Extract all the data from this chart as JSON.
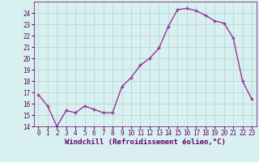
{
  "x": [
    0,
    1,
    2,
    3,
    4,
    5,
    6,
    7,
    8,
    9,
    10,
    11,
    12,
    13,
    14,
    15,
    16,
    17,
    18,
    19,
    20,
    21,
    22,
    23
  ],
  "y": [
    16.8,
    15.8,
    14.0,
    15.4,
    15.2,
    15.8,
    15.5,
    15.2,
    15.2,
    17.5,
    18.3,
    19.4,
    20.0,
    20.9,
    22.8,
    24.3,
    24.4,
    24.2,
    23.8,
    23.3,
    23.1,
    21.8,
    18.0,
    16.4
  ],
  "line_color": "#993399",
  "marker": "P",
  "marker_size": 2.5,
  "bg_color": "#d8f0f0",
  "grid_color": "#b8d8d8",
  "xlabel": "Windchill (Refroidissement éolien,°C)",
  "xlabel_color": "#660066",
  "tick_color": "#660066",
  "ylim": [
    14,
    25
  ],
  "xlim": [
    -0.5,
    23.5
  ],
  "yticks": [
    14,
    15,
    16,
    17,
    18,
    19,
    20,
    21,
    22,
    23,
    24
  ],
  "xticks": [
    0,
    1,
    2,
    3,
    4,
    5,
    6,
    7,
    8,
    9,
    10,
    11,
    12,
    13,
    14,
    15,
    16,
    17,
    18,
    19,
    20,
    21,
    22,
    23
  ],
  "tick_fontsize": 5.5,
  "xlabel_fontsize": 6.5,
  "linewidth": 1.0
}
